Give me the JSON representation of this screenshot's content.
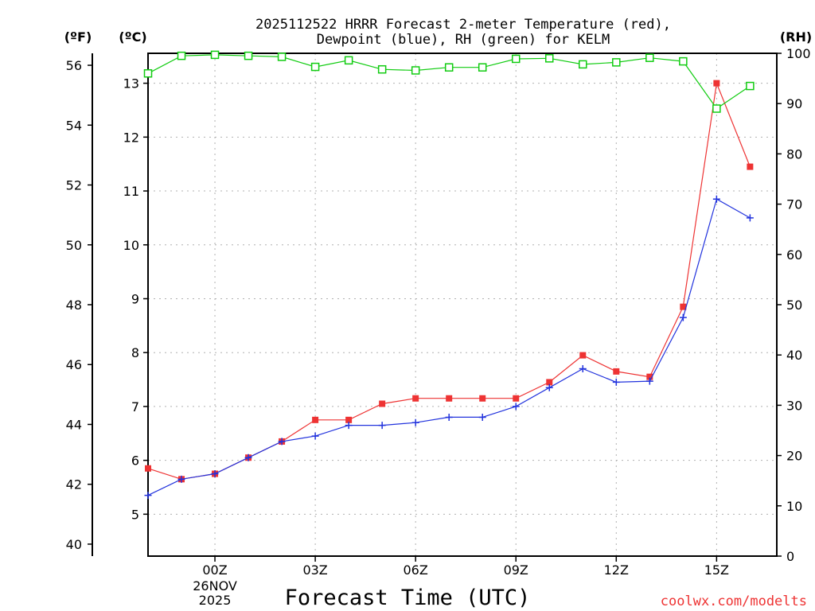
{
  "chart_data": {
    "type": "line",
    "title_line1": "2025112522 HRRR Forecast 2-meter Temperature (red),",
    "title_line2": "Dewpoint (blue), RH (green) for KELM",
    "xlabel": "Forecast Time (UTC)",
    "credit": "coolwx.com/modelts",
    "colors": {
      "temperature": "#ee3333",
      "dewpoint": "#2233dd",
      "rh": "#11cc11",
      "grid": "#b0b0b0"
    },
    "axes": {
      "fahrenheit": {
        "unit_label": "(ºF)",
        "range": [
          39.6,
          56.4
        ],
        "ticks": [
          "40",
          "42",
          "44",
          "46",
          "48",
          "50",
          "52",
          "54",
          "56"
        ]
      },
      "celsius": {
        "unit_label": "(ºC)",
        "ticks": [
          "5",
          "6",
          "7",
          "8",
          "9",
          "10",
          "11",
          "12",
          "13"
        ]
      },
      "rh": {
        "unit_label": "(RH)",
        "range": [
          0,
          100
        ],
        "ticks": [
          "0",
          "10",
          "20",
          "30",
          "40",
          "50",
          "60",
          "70",
          "80",
          "90",
          "100"
        ]
      }
    },
    "x_range": [
      -2,
      16.8
    ],
    "x_ticks": [
      {
        "hour": 0,
        "label": "00Z",
        "date_line": "26NOV",
        "year_line": "2025"
      },
      {
        "hour": 3,
        "label": "03Z"
      },
      {
        "hour": 6,
        "label": "06Z"
      },
      {
        "hour": 9,
        "label": "09Z"
      },
      {
        "hour": 12,
        "label": "12Z"
      },
      {
        "hour": 15,
        "label": "15Z"
      }
    ],
    "hours": [
      -2,
      -1,
      0,
      1,
      2,
      3,
      4,
      5,
      6,
      7,
      8,
      9,
      10,
      11,
      12,
      13,
      14,
      15,
      16
    ],
    "series": [
      {
        "name": "Temperature",
        "unit": "°C",
        "marker": "square",
        "color_key": "temperature",
        "values": [
          5.85,
          5.65,
          5.75,
          6.05,
          6.35,
          6.75,
          6.75,
          7.05,
          7.15,
          7.15,
          7.15,
          7.15,
          7.45,
          7.95,
          7.65,
          7.55,
          8.85,
          13.0,
          11.45
        ]
      },
      {
        "name": "Dewpoint",
        "unit": "°C",
        "marker": "plus",
        "color_key": "dewpoint",
        "values": [
          5.35,
          5.65,
          5.75,
          6.05,
          6.35,
          6.45,
          6.65,
          6.65,
          6.7,
          6.8,
          6.8,
          7.0,
          7.35,
          7.7,
          7.45,
          7.47,
          8.65,
          10.85,
          10.5
        ]
      },
      {
        "name": "RH",
        "unit": "%",
        "marker": "open-square",
        "color_key": "rh",
        "values": [
          96.0,
          99.5,
          99.7,
          99.5,
          99.3,
          97.3,
          98.6,
          96.8,
          96.6,
          97.2,
          97.2,
          98.9,
          99.0,
          97.8,
          98.2,
          99.1,
          98.4,
          89.0,
          93.5
        ]
      }
    ]
  }
}
